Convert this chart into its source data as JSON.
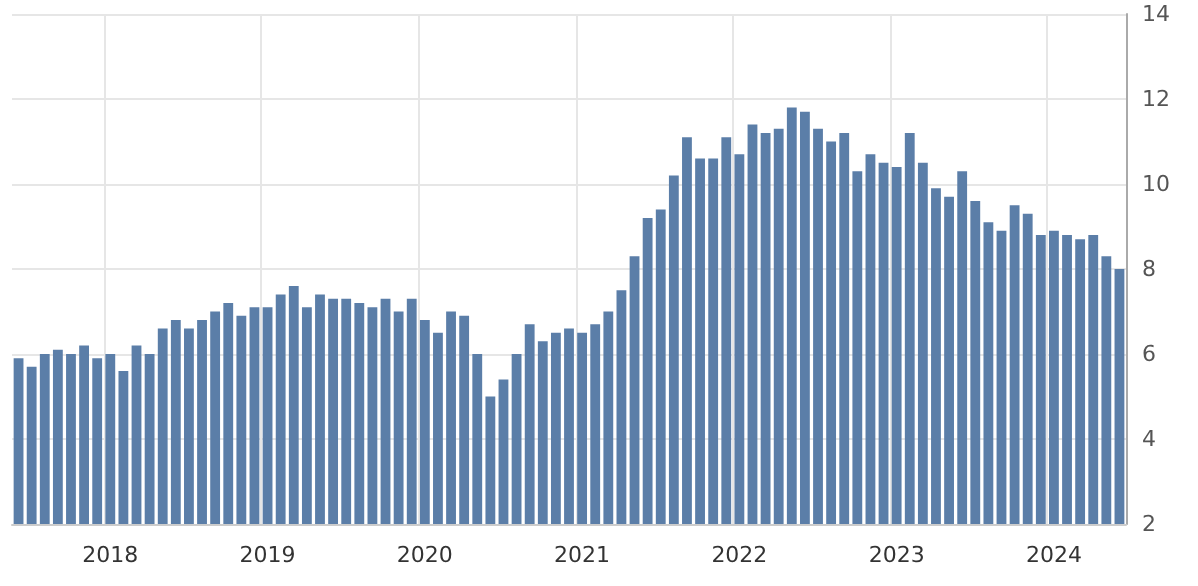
{
  "chart_data": {
    "type": "bar",
    "categories": [
      null,
      null,
      null,
      null,
      null,
      null,
      null,
      "2018",
      null,
      null,
      null,
      null,
      null,
      null,
      null,
      null,
      null,
      null,
      null,
      "2019",
      null,
      null,
      null,
      null,
      null,
      null,
      null,
      null,
      null,
      null,
      null,
      "2020",
      null,
      null,
      null,
      null,
      null,
      null,
      null,
      null,
      null,
      null,
      null,
      "2021",
      null,
      null,
      null,
      null,
      null,
      null,
      null,
      null,
      null,
      null,
      null,
      "2022",
      null,
      null,
      null,
      null,
      null,
      null,
      null,
      null,
      null,
      null,
      null,
      "2023",
      null,
      null,
      null,
      null,
      null,
      null,
      null,
      null,
      null,
      null,
      null,
      "2024",
      null,
      null,
      null,
      null,
      null
    ],
    "values": [
      5.9,
      5.7,
      6.0,
      6.1,
      6.0,
      6.2,
      5.9,
      6.0,
      5.6,
      6.2,
      6.0,
      6.6,
      6.8,
      6.6,
      6.8,
      7.0,
      7.2,
      6.9,
      7.1,
      7.1,
      7.4,
      7.6,
      7.1,
      7.4,
      7.3,
      7.3,
      7.2,
      7.1,
      7.3,
      7.0,
      7.3,
      6.8,
      6.5,
      7.0,
      6.9,
      6.0,
      5.0,
      5.4,
      6.0,
      6.7,
      6.3,
      6.5,
      6.6,
      6.5,
      6.7,
      7.0,
      7.5,
      8.3,
      9.2,
      9.4,
      10.2,
      11.1,
      10.6,
      10.6,
      11.1,
      10.7,
      11.4,
      11.2,
      11.3,
      11.8,
      11.7,
      11.3,
      11.0,
      11.2,
      10.3,
      10.7,
      10.5,
      10.4,
      11.2,
      10.5,
      9.9,
      9.7,
      10.3,
      9.6,
      9.1,
      8.9,
      9.5,
      9.3,
      8.8,
      8.9,
      8.8,
      8.7,
      8.8,
      8.3,
      8.0
    ],
    "color": "#5b7ea8",
    "ylim": [
      2,
      14
    ],
    "yticks": [
      2,
      4,
      6,
      8,
      10,
      12,
      14
    ],
    "grid": true
  }
}
